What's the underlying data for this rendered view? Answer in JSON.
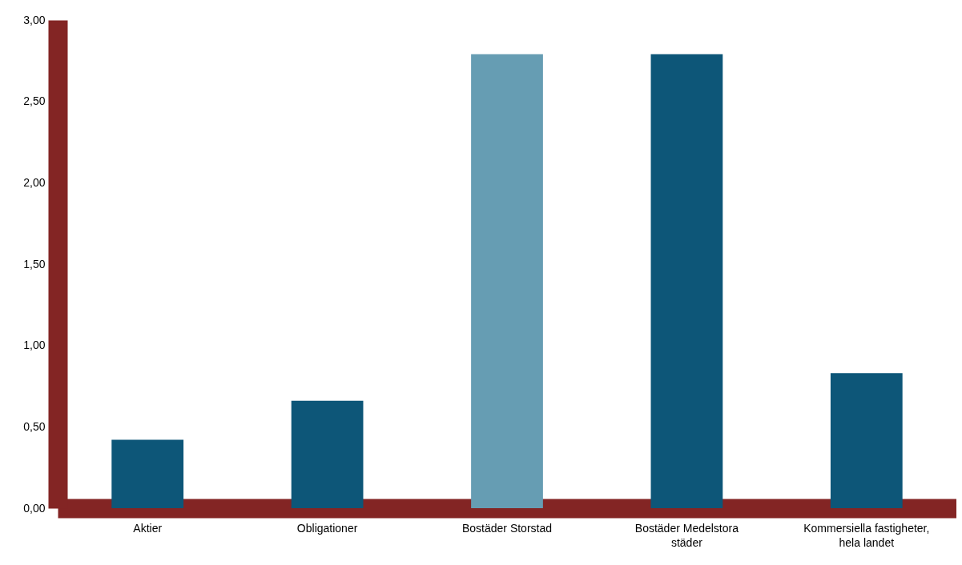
{
  "chart_data": {
    "type": "bar",
    "categories": [
      "Aktier",
      "Obligationer",
      "Bostäder Storstad",
      "Bostäder Medelstora städer",
      "Kommersiella fastigheter, hela landet"
    ],
    "values": [
      0.42,
      0.66,
      2.79,
      2.79,
      0.83
    ],
    "colors": [
      "#0d5678",
      "#0d5678",
      "#669db3",
      "#0d5678",
      "#0d5678"
    ],
    "ylim": [
      0,
      3
    ],
    "yticks": [
      {
        "value": 0,
        "label": "0,00"
      },
      {
        "value": 0.5,
        "label": "0,50"
      },
      {
        "value": 1,
        "label": "1,00"
      },
      {
        "value": 1.5,
        "label": "1,50"
      },
      {
        "value": 2,
        "label": "2,00"
      },
      {
        "value": 2.5,
        "label": "2,50"
      },
      {
        "value": 3,
        "label": "3,00"
      }
    ],
    "grid": false
  }
}
